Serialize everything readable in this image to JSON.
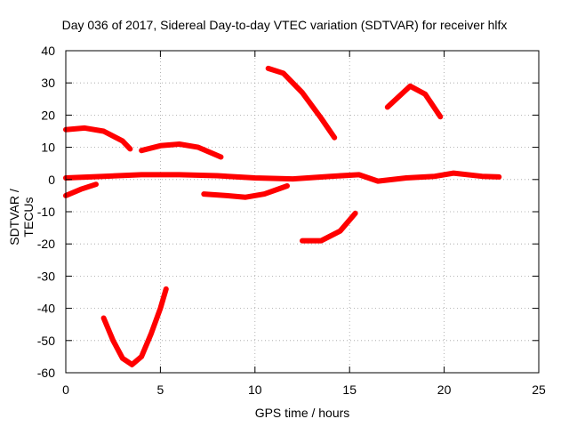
{
  "chart_data": {
    "type": "line",
    "title": "Day 036 of 2017, Sidereal Day-to-day VTEC variation (SDTVAR) for receiver hlfx",
    "xlabel": "GPS time / hours",
    "ylabel": "SDTVAR / TECUs",
    "xlim": [
      0,
      25
    ],
    "ylim": [
      -60,
      40
    ],
    "xticks": [
      0,
      5,
      10,
      15,
      20,
      25
    ],
    "yticks": [
      -60,
      -50,
      -40,
      -30,
      -20,
      -10,
      0,
      10,
      20,
      30,
      40
    ],
    "grid": true,
    "line_color": "#ff0000",
    "series": [
      {
        "x": [
          0.0,
          2.0,
          4.0,
          6.0,
          8.0,
          10.0,
          12.0,
          14.0,
          15.5,
          16.5,
          18.0,
          19.5,
          20.5,
          22.0,
          22.9
        ],
        "y": [
          0.5,
          1.0,
          1.5,
          1.5,
          1.2,
          0.5,
          0.2,
          1.0,
          1.5,
          -0.5,
          0.5,
          1.0,
          2.0,
          1.0,
          0.8
        ]
      },
      {
        "x": [
          0.0,
          1.0,
          2.0,
          3.0,
          3.4
        ],
        "y": [
          15.5,
          16.0,
          15.0,
          12.0,
          9.5
        ]
      },
      {
        "x": [
          4.0,
          5.0,
          6.0,
          7.0,
          8.2
        ],
        "y": [
          9.0,
          10.5,
          11.0,
          10.0,
          7.0
        ]
      },
      {
        "x": [
          0.0,
          0.8,
          1.6
        ],
        "y": [
          -5.0,
          -3.0,
          -1.5
        ]
      },
      {
        "x": [
          7.3,
          8.5,
          9.5,
          10.5,
          11.7
        ],
        "y": [
          -4.5,
          -5.0,
          -5.5,
          -4.5,
          -2.0
        ]
      },
      {
        "x": [
          10.7,
          11.5,
          12.5,
          13.5,
          14.2
        ],
        "y": [
          34.5,
          33.0,
          27.0,
          19.0,
          13.0
        ]
      },
      {
        "x": [
          12.5,
          13.5,
          14.5,
          15.3
        ],
        "y": [
          -19.0,
          -19.0,
          -16.0,
          -10.5
        ]
      },
      {
        "x": [
          17.0,
          18.2,
          19.0,
          19.8
        ],
        "y": [
          22.5,
          29.0,
          26.5,
          19.5
        ]
      },
      {
        "x": [
          2.0,
          2.5,
          3.0,
          3.5,
          4.0,
          4.5,
          5.0,
          5.3
        ],
        "y": [
          -43.0,
          -50.0,
          -55.5,
          -57.5,
          -55.0,
          -48.0,
          -40.0,
          -34.0
        ]
      }
    ]
  }
}
